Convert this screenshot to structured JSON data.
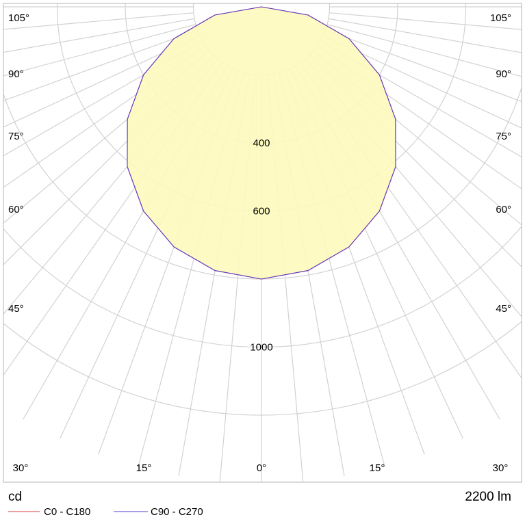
{
  "chart_data": {
    "type": "polar-luminous-intensity",
    "unit_label": "cd",
    "flux_label": "2200 lm",
    "radial_max": 1200,
    "radial_rings": [
      200,
      400,
      600,
      800,
      1000,
      1200
    ],
    "ring_labels": [
      {
        "value": 400,
        "text": "400"
      },
      {
        "value": 600,
        "text": "600"
      },
      {
        "value": 1000,
        "text": "1000"
      }
    ],
    "angle_lines_step_deg": 5,
    "angle_labels": [
      {
        "angle": 0,
        "text": "0°"
      },
      {
        "angle": 15,
        "text": "15°"
      },
      {
        "angle": 30,
        "text": "30°"
      },
      {
        "angle": 45,
        "text": "45°"
      },
      {
        "angle": 60,
        "text": "60°"
      },
      {
        "angle": 75,
        "text": "75°"
      },
      {
        "angle": 90,
        "text": "90°"
      },
      {
        "angle": 105,
        "text": "105°"
      }
    ],
    "series": [
      {
        "name": "C0 - C180",
        "color": "#e03c3c",
        "fill": "#fdfbbd",
        "angles_deg": [
          0,
          10,
          20,
          30,
          40,
          50,
          60,
          70,
          80,
          90
        ],
        "values_cd": [
          800,
          787,
          751,
          693,
          613,
          514,
          400,
          274,
          139,
          0
        ]
      },
      {
        "name": "C90 - C270",
        "color": "#5a3cc8",
        "fill": "#fdfbbd",
        "angles_deg": [
          0,
          10,
          20,
          30,
          40,
          50,
          60,
          70,
          80,
          90
        ],
        "values_cd": [
          800,
          787,
          751,
          693,
          613,
          514,
          400,
          274,
          139,
          0
        ]
      }
    ],
    "grid": true,
    "legend_position": "bottom-left"
  }
}
